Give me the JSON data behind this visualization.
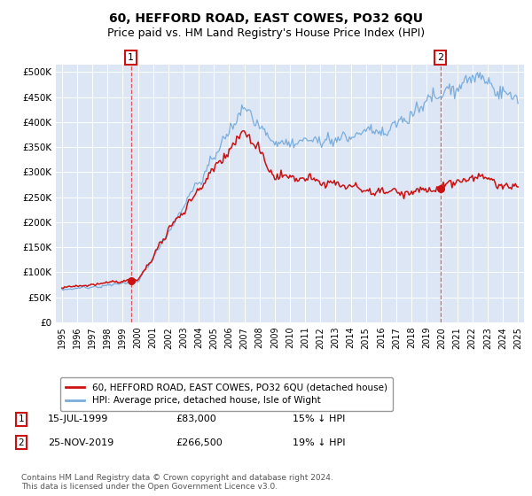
{
  "title": "60, HEFFORD ROAD, EAST COWES, PO32 6QU",
  "subtitle": "Price paid vs. HM Land Registry's House Price Index (HPI)",
  "ylabel_ticks": [
    "£0",
    "£50K",
    "£100K",
    "£150K",
    "£200K",
    "£250K",
    "£300K",
    "£350K",
    "£400K",
    "£450K",
    "£500K"
  ],
  "ytick_vals": [
    0,
    50000,
    100000,
    150000,
    200000,
    250000,
    300000,
    350000,
    400000,
    450000,
    500000
  ],
  "ylim": [
    0,
    515000
  ],
  "xlim_start": 1994.6,
  "xlim_end": 2025.4,
  "background_color": "#dce6f5",
  "grid_color": "#ffffff",
  "hpi_color": "#7aaddc",
  "price_color": "#cc1111",
  "sale1_x": 1999.54,
  "sale1_y": 83000,
  "sale2_x": 2019.9,
  "sale2_y": 266500,
  "legend_label1": "60, HEFFORD ROAD, EAST COWES, PO32 6QU (detached house)",
  "legend_label2": "HPI: Average price, detached house, Isle of Wight",
  "annotation1_label": "1",
  "annotation2_label": "2",
  "sale1_text": "15-JUL-1999",
  "sale1_price": "£83,000",
  "sale1_hpi": "15% ↓ HPI",
  "sale2_text": "25-NOV-2019",
  "sale2_price": "£266,500",
  "sale2_hpi": "19% ↓ HPI",
  "footnote": "Contains HM Land Registry data © Crown copyright and database right 2024.\nThis data is licensed under the Open Government Licence v3.0.",
  "title_fontsize": 10,
  "subtitle_fontsize": 9
}
